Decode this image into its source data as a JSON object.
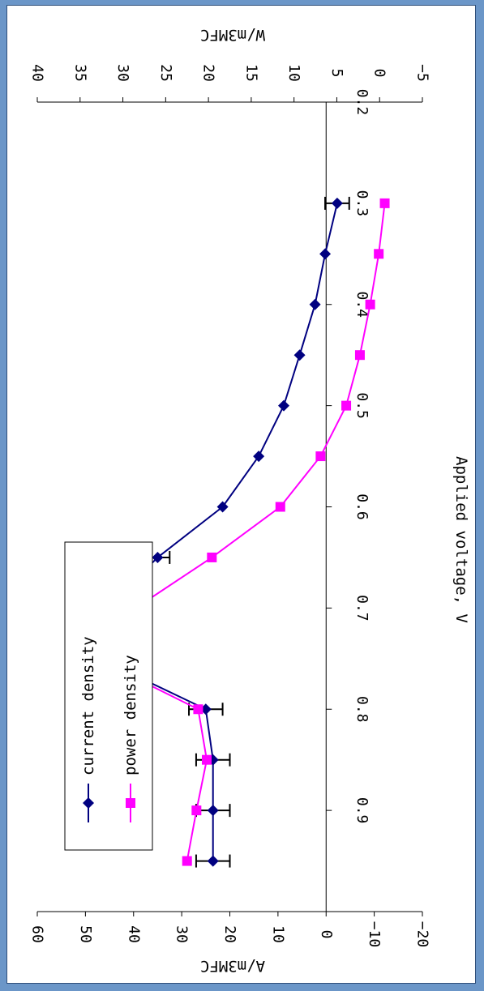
{
  "chart_data": {
    "type": "line",
    "orientation": "rotated-90-clockwise",
    "title": "",
    "xlabel": "Applied voltage, V",
    "ylabel_left": "A/m3MFC",
    "ylabel_right": "W/m3MFC",
    "xlim": [
      0.2,
      1.0
    ],
    "x_ticks": [
      "0.2",
      "0.3",
      "0.4",
      "0.5",
      "0.6",
      "0.7",
      "0.8",
      "0.9"
    ],
    "ylim_left": [
      -20,
      60
    ],
    "y_ticks_left": [
      "60",
      "50",
      "40",
      "30",
      "20",
      "10",
      "0",
      "-10",
      "-20"
    ],
    "ylim_right": [
      -5,
      40
    ],
    "y_ticks_right": [
      "40",
      "35",
      "30",
      "25",
      "20",
      "15",
      "10",
      "5",
      "0",
      "-5"
    ],
    "legend": {
      "position": "bottom-left",
      "border": true
    },
    "series": [
      {
        "name": "current density",
        "axis": "left",
        "color": "#000080",
        "marker": "diamond",
        "x": [
          0.3,
          0.35,
          0.4,
          0.45,
          0.5,
          0.55,
          0.6,
          0.65,
          0.7,
          0.75,
          0.8,
          0.85,
          0.9,
          0.95
        ],
        "values": [
          -2.3,
          0.2,
          2.3,
          5.5,
          8.8,
          14,
          21.5,
          35,
          45.5,
          47,
          25,
          23.5,
          23.5,
          23.5
        ],
        "error": [
          2.5,
          0,
          0,
          0,
          0,
          0,
          0,
          2.5,
          2.5,
          2.5,
          3.5,
          3.5,
          3.5,
          3.5
        ]
      },
      {
        "name": "power density",
        "axis": "right",
        "color": "#ff00ff",
        "marker": "square",
        "x": [
          0.3,
          0.35,
          0.4,
          0.45,
          0.5,
          0.55,
          0.6,
          0.65,
          0.7,
          0.75,
          0.8,
          0.85,
          0.9,
          0.95
        ],
        "values": [
          -0.6,
          0.1,
          1.1,
          2.3,
          3.9,
          6.9,
          11.6,
          19.6,
          28.5,
          33.1,
          21.2,
          20.2,
          21.4,
          22.5
        ]
      }
    ]
  }
}
